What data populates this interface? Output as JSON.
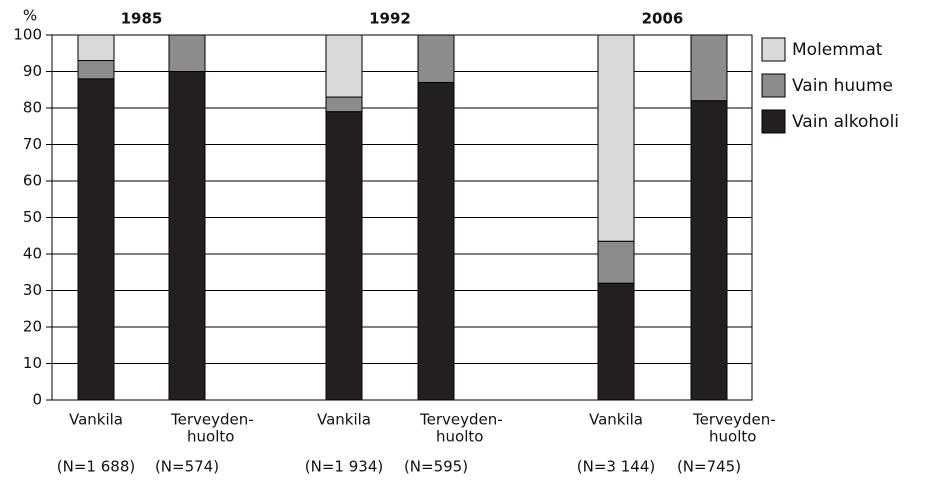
{
  "chart_data": {
    "type": "stacked_bar",
    "y_label": "%",
    "groups": [
      "1985",
      "1992",
      "2006"
    ],
    "categories": [
      [
        "Vankila"
      ],
      [
        "Terveyden-",
        "huolto"
      ],
      [
        "Vankila"
      ],
      [
        "Terveyden-",
        "huolto"
      ],
      [
        "Vankila"
      ],
      [
        "Terveyden-",
        "huolto"
      ]
    ],
    "sample_sizes": [
      "(N=1 688)",
      "(N=574)",
      "(N=1 934)",
      "(N=595)",
      "(N=3 144)",
      "(N=745)"
    ],
    "series": [
      {
        "name": "Vain alkoholi",
        "color": "#231f20",
        "values": [
          88,
          90,
          79,
          87,
          32,
          82
        ]
      },
      {
        "name": "Vain huume",
        "color": "#8c8c8c",
        "values": [
          5,
          10,
          4,
          13,
          11.5,
          18
        ]
      },
      {
        "name": "Molemmat",
        "color": "#d9d9d9",
        "values": [
          7,
          0,
          17,
          0,
          56.5,
          0
        ]
      }
    ],
    "ylim": [
      0,
      100
    ],
    "yticks": [
      0,
      10,
      20,
      30,
      40,
      50,
      60,
      70,
      80,
      90,
      100
    ],
    "grid": true,
    "legend": "right"
  }
}
